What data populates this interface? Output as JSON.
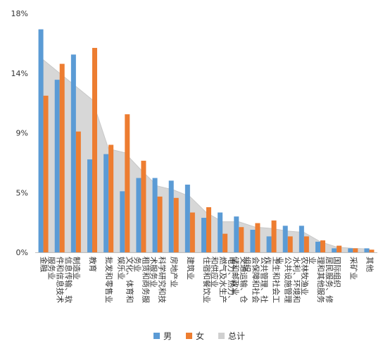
{
  "chart_data": {
    "type": "bar",
    "y_tick_labels": [
      "0%",
      "5%",
      "9%",
      "14%",
      "18%"
    ],
    "ylim": [
      0,
      18
    ],
    "grid": false,
    "legend_position": "bottom",
    "categories": [
      "金融",
      "信息传输、软件和信息技术服务业",
      "制造业",
      "教育",
      "批发和零售业",
      "文化、体育和娱乐业",
      "租赁和商务服务业",
      "科学研究和技术服务业",
      "房地产业",
      "建筑业",
      "住宿和餐饮业",
      "电力、热力、燃气及水生产和供应业",
      "交通运输、仓储和邮政业",
      "公共管理、社会保障和社会组织",
      "卫生和社会工作",
      "水利、环境和公共设施管理业",
      "农林牧渔业",
      "居民服务、修理和其他服务业",
      "国际组织",
      "采矿业",
      "其他"
    ],
    "series": [
      {
        "name": "男",
        "type": "bar",
        "color": "#5B9BD5",
        "values": [
          16.8,
          13.0,
          14.9,
          7.0,
          7.4,
          4.6,
          5.6,
          5.6,
          5.4,
          5.1,
          2.6,
          3.0,
          2.7,
          1.7,
          1.2,
          2.0,
          2.0,
          0.8,
          0.3,
          0.3,
          0.3
        ]
      },
      {
        "name": "女",
        "type": "bar",
        "color": "#ED7D31",
        "values": [
          11.8,
          14.2,
          9.1,
          15.4,
          8.1,
          10.4,
          6.9,
          4.2,
          4.1,
          3.0,
          3.4,
          1.4,
          1.9,
          2.2,
          2.4,
          1.2,
          1.2,
          0.9,
          0.5,
          0.3,
          0.2
        ]
      },
      {
        "name": "总计",
        "type": "area",
        "color": "#D0D0D0",
        "values": [
          14.5,
          13.5,
          12.5,
          11.5,
          7.8,
          7.5,
          6.2,
          5.0,
          4.7,
          4.2,
          3.0,
          2.3,
          2.3,
          1.9,
          1.8,
          1.6,
          1.5,
          0.8,
          0.4,
          0.3,
          0.25
        ]
      }
    ]
  }
}
